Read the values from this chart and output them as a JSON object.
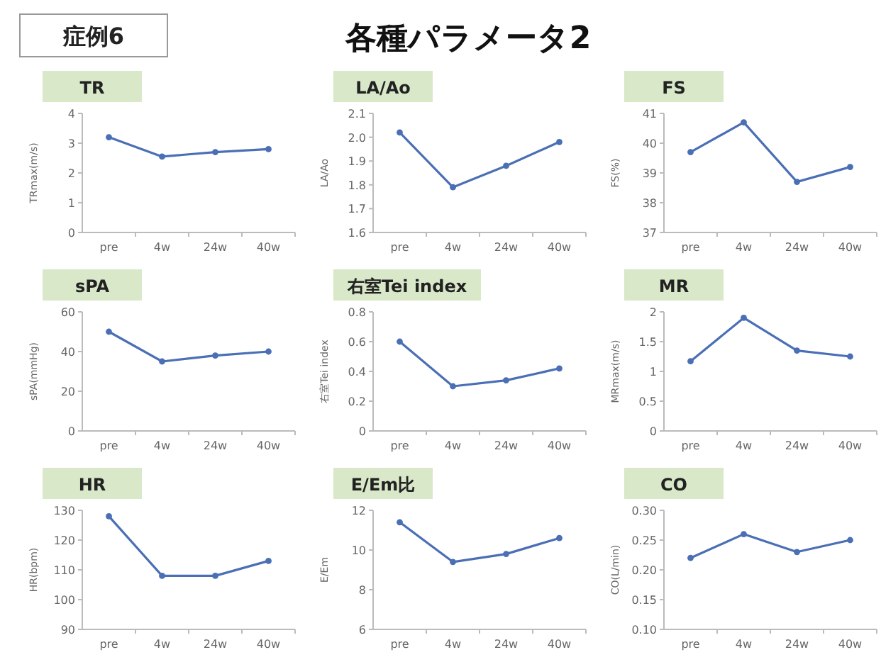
{
  "chart_data": [
    {
      "type": "other",
      "title": "各種パラメータ2",
      "annotations": [
        "症例6"
      ]
    },
    {
      "type": "line",
      "title": "TR",
      "ylabel": "TRmax(m/s)",
      "categories": [
        "pre",
        "4w",
        "24w",
        "40w"
      ],
      "series": [
        {
          "color": "#4a6fb5",
          "values": [
            3.2,
            2.55,
            2.7,
            2.8
          ]
        }
      ],
      "ylim": [
        0,
        4
      ],
      "yticks": [
        0,
        1,
        2,
        3,
        4
      ],
      "marker": "circle"
    },
    {
      "type": "line",
      "title": "LA/Ao",
      "ylabel": "LA/Ao",
      "categories": [
        "pre",
        "4w",
        "24w",
        "40w"
      ],
      "series": [
        {
          "color": "#4a6fb5",
          "values": [
            2.02,
            1.79,
            1.88,
            1.98
          ]
        }
      ],
      "ylim": [
        1.6,
        2.1
      ],
      "yticks": [
        1.6,
        1.7,
        1.8,
        1.9,
        {
          "value": 2,
          "label": "2.0"
        },
        2.1
      ],
      "marker": "circle"
    },
    {
      "type": "line",
      "title": "FS",
      "ylabel": "FS(%)",
      "categories": [
        "pre",
        "4w",
        "24w",
        "40w"
      ],
      "series": [
        {
          "color": "#4a6fb5",
          "values": [
            39.7,
            40.7,
            38.7,
            39.2
          ]
        }
      ],
      "ylim": [
        37,
        41
      ],
      "yticks": [
        37,
        38,
        39,
        40,
        41
      ],
      "marker": "circle"
    },
    {
      "type": "line",
      "title": "sPA",
      "ylabel": "sPA(mmHg)",
      "categories": [
        "pre",
        "4w",
        "24w",
        "40w"
      ],
      "series": [
        {
          "color": "#4a6fb5",
          "values": [
            50,
            35,
            38,
            40
          ]
        }
      ],
      "ylim": [
        0,
        60
      ],
      "yticks": [
        0,
        20,
        40,
        60
      ],
      "marker": "circle"
    },
    {
      "type": "line",
      "title": "右室Tei index",
      "ylabel": "右室Tei index",
      "categories": [
        "pre",
        "4w",
        "24w",
        "40w"
      ],
      "series": [
        {
          "color": "#4a6fb5",
          "values": [
            0.6,
            0.3,
            0.34,
            0.42
          ]
        }
      ],
      "ylim": [
        0,
        0.8
      ],
      "yticks": [
        0,
        0.2,
        0.4,
        0.6,
        0.8
      ],
      "marker": "circle"
    },
    {
      "type": "line",
      "title": "MR",
      "ylabel": "MRmax(m/s)",
      "categories": [
        "pre",
        "4w",
        "24w",
        "40w"
      ],
      "series": [
        {
          "color": "#4a6fb5",
          "values": [
            1.17,
            1.9,
            1.35,
            1.25
          ]
        }
      ],
      "ylim": [
        0,
        2
      ],
      "yticks": [
        0,
        0.5,
        1,
        1.5,
        2
      ],
      "marker": "circle"
    },
    {
      "type": "line",
      "title": "HR",
      "ylabel": "HR(bpm)",
      "categories": [
        "pre",
        "4w",
        "24w",
        "40w"
      ],
      "series": [
        {
          "color": "#4a6fb5",
          "values": [
            128,
            108,
            108,
            113
          ]
        }
      ],
      "ylim": [
        90,
        130
      ],
      "yticks": [
        90,
        100,
        110,
        120,
        130
      ],
      "marker": "circle"
    },
    {
      "type": "line",
      "title": "E/Em比",
      "ylabel": "E/Em",
      "categories": [
        "pre",
        "4w",
        "24w",
        "40w"
      ],
      "series": [
        {
          "color": "#4a6fb5",
          "values": [
            11.4,
            9.4,
            9.8,
            10.6
          ]
        }
      ],
      "ylim": [
        6,
        12
      ],
      "yticks": [
        6,
        8,
        10,
        12
      ],
      "marker": "circle"
    },
    {
      "type": "line",
      "title": "CO",
      "ylabel": "CO(L/min)",
      "categories": [
        "pre",
        "4w",
        "24w",
        "40w"
      ],
      "series": [
        {
          "color": "#4a6fb5",
          "values": [
            0.22,
            0.26,
            0.23,
            0.25
          ]
        }
      ],
      "ylim": [
        0.1,
        0.3
      ],
      "yticks": [
        {
          "value": 0.1,
          "label": "0.10"
        },
        {
          "value": 0.15,
          "label": "0.15"
        },
        {
          "value": 0.2,
          "label": "0.20"
        },
        {
          "value": 0.25,
          "label": "0.25"
        },
        {
          "value": 0.3,
          "label": "0.30"
        }
      ],
      "marker": "circle"
    }
  ]
}
